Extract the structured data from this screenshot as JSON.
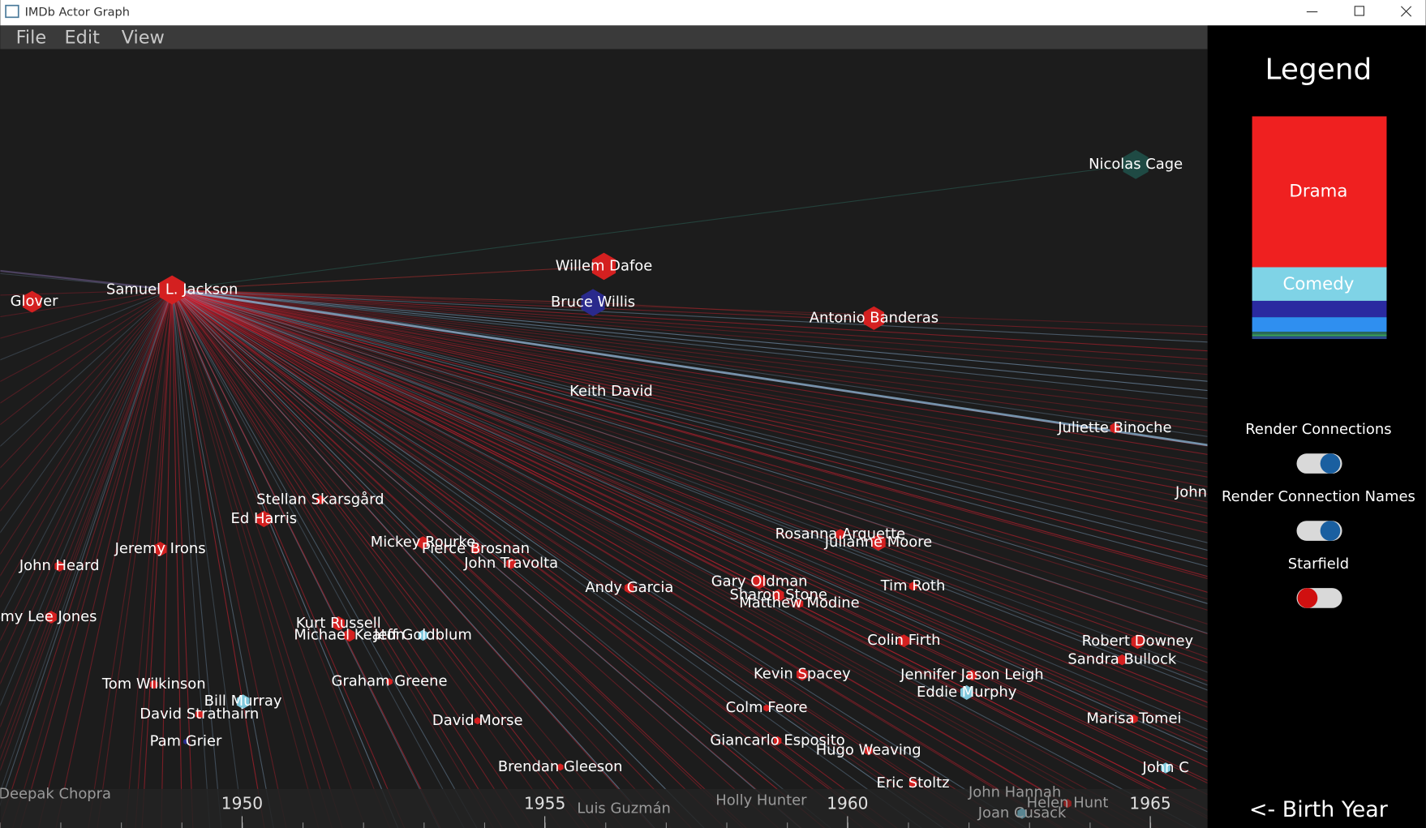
{
  "window": {
    "title": "IMDb Actor Graph"
  },
  "menu": [
    "File",
    "Edit",
    "View"
  ],
  "graph": {
    "nodes": [
      {
        "label": "Samuel L. Jackson",
        "color": "#d42020"
      },
      {
        "label": "Nicolas Cage",
        "color": "#1f4a44"
      },
      {
        "label": "Willem Dafoe",
        "color": "#d42020"
      },
      {
        "label": "Bruce Willis",
        "color": "#2a2a8c"
      },
      {
        "label": "Antonio Banderas",
        "color": "#d42020"
      },
      {
        "label": "Glover",
        "color": "#d42020"
      },
      {
        "label": "Keith David",
        "color": "#d42020"
      },
      {
        "label": "Juliette Binoche",
        "color": "#d42020"
      },
      {
        "label": "John",
        "color": "#d42020"
      },
      {
        "label": "Stellan Skarsgård",
        "color": "#d42020"
      },
      {
        "label": "Ed Harris",
        "color": "#d42020"
      },
      {
        "label": "Jeremy Irons",
        "color": "#d42020"
      },
      {
        "label": "John Heard",
        "color": "#d42020"
      },
      {
        "label": "Mickey Rourke",
        "color": "#d42020"
      },
      {
        "label": "Pierce Brosnan",
        "color": "#d42020"
      },
      {
        "label": "John Travolta",
        "color": "#d42020"
      },
      {
        "label": "Andy Garcia",
        "color": "#d42020"
      },
      {
        "label": "Rosanna Arquette",
        "color": "#d42020"
      },
      {
        "label": "Julianne Moore",
        "color": "#d42020"
      },
      {
        "label": "Gary Oldman",
        "color": "#d42020"
      },
      {
        "label": "Sharon Stone",
        "color": "#d42020"
      },
      {
        "label": "Matthew Modine",
        "color": "#d42020"
      },
      {
        "label": "Tim Roth",
        "color": "#d42020"
      },
      {
        "label": "my Lee Jones",
        "color": "#d42020"
      },
      {
        "label": "Kurt Russell",
        "color": "#d42020"
      },
      {
        "label": "Michael Keaton",
        "color": "#d42020"
      },
      {
        "label": "Jeff Goldblum",
        "color": "#7fc8dc"
      },
      {
        "label": "Colin Firth",
        "color": "#d42020"
      },
      {
        "label": "Robert Downey",
        "color": "#d42020"
      },
      {
        "label": "Sandra Bullock",
        "color": "#d42020"
      },
      {
        "label": "Tom Wilkinson",
        "color": "#d42020"
      },
      {
        "label": "Bill Murray",
        "color": "#7fc8dc"
      },
      {
        "label": "David Strathairn",
        "color": "#d42020"
      },
      {
        "label": "Graham Greene",
        "color": "#d42020"
      },
      {
        "label": "Kevin Spacey",
        "color": "#d42020"
      },
      {
        "label": "Jennifer Jason Leigh",
        "color": "#d42020"
      },
      {
        "label": "Eddie Murphy",
        "color": "#7fc8dc"
      },
      {
        "label": "Colm Feore",
        "color": "#d42020"
      },
      {
        "label": "Marisa Tomei",
        "color": "#d42020"
      },
      {
        "label": "David Morse",
        "color": "#d42020"
      },
      {
        "label": "Pam Grier",
        "color": "#2a2a8c"
      },
      {
        "label": "Giancarlo Esposito",
        "color": "#d42020"
      },
      {
        "label": "Hugo Weaving",
        "color": "#d42020"
      },
      {
        "label": "Brendan Gleeson",
        "color": "#d42020"
      },
      {
        "label": "John C",
        "color": "#7fc8dc"
      },
      {
        "label": "Eric Stoltz",
        "color": "#d42020"
      },
      {
        "label": "John Hannah",
        "color": "#d42020"
      },
      {
        "label": "Helen Hunt",
        "color": "#d42020"
      },
      {
        "label": "Joan Cusack",
        "color": "#7fc8dc"
      },
      {
        "label": "Holly Hunter",
        "color": "#d42020"
      },
      {
        "label": "Luis Guzmán",
        "color": "#d42020"
      },
      {
        "label": "Deepak Chopra",
        "color": "#d42020"
      }
    ],
    "axis": {
      "ticks": [
        "1950",
        "1955",
        "1960",
        "1965"
      ],
      "label": "<- Birth Year"
    }
  },
  "legend": {
    "title": "Legend",
    "entries": [
      "Drama",
      "Comedy"
    ],
    "toggles": [
      {
        "label": "Render Connections",
        "on": true
      },
      {
        "label": "Render Connection Names",
        "on": true
      },
      {
        "label": "Starfield",
        "on": false
      }
    ]
  }
}
